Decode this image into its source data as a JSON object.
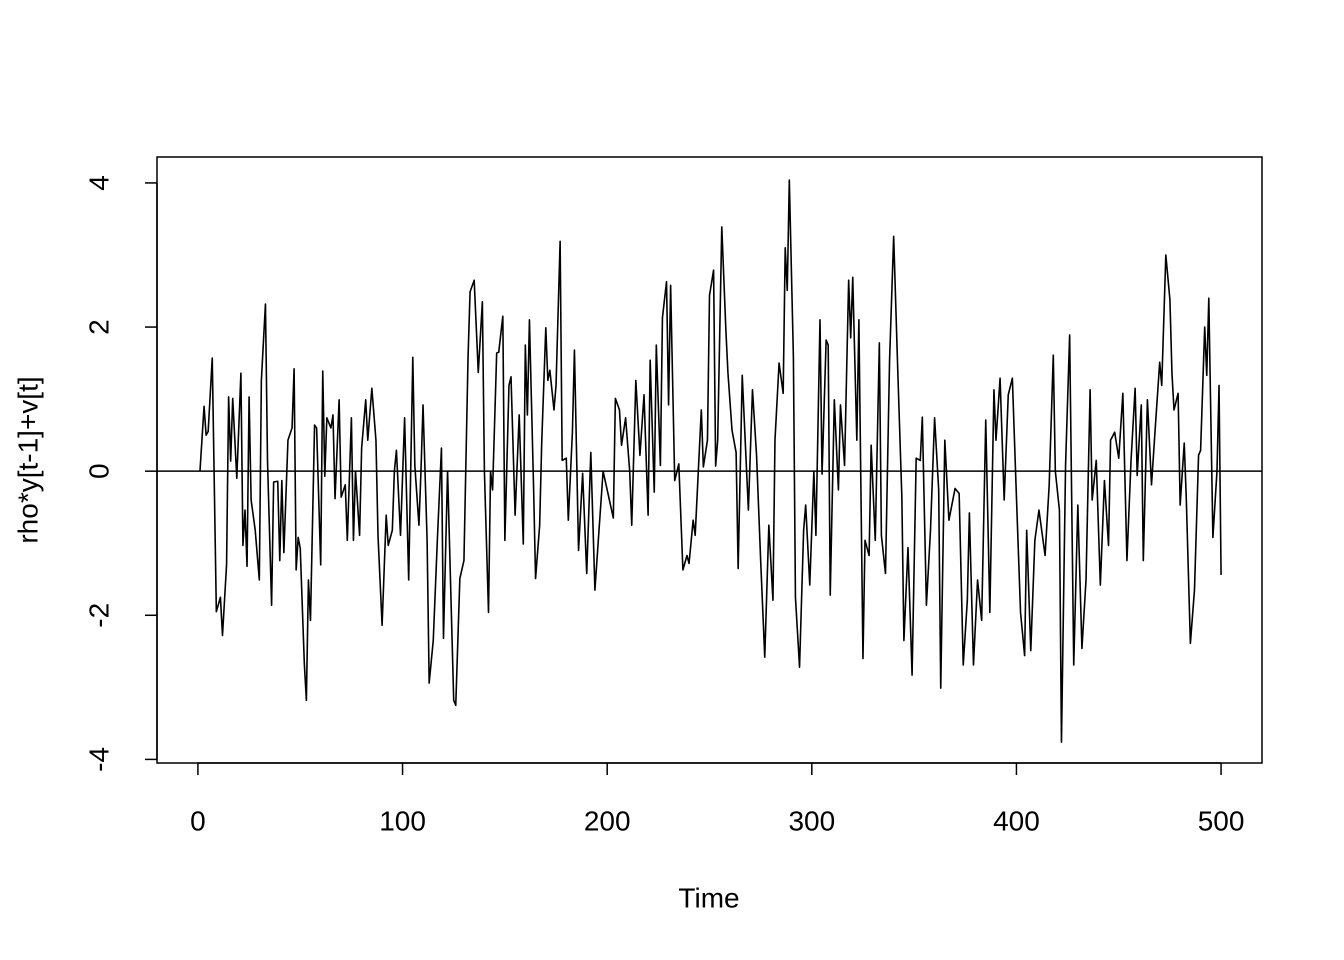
{
  "chart_data": {
    "type": "line",
    "x_label": "Time",
    "y_label": "rho*y[t-1]+v[t]",
    "color": "#000000",
    "hline": 0,
    "xlim": [
      -20,
      520
    ],
    "ylim": [
      -4.05,
      4.36
    ],
    "xticks": [
      0,
      100,
      200,
      300,
      400,
      500
    ],
    "yticks": [
      -4,
      -2,
      0,
      2,
      4
    ],
    "x": [
      1,
      3,
      4,
      5,
      7,
      9,
      11,
      12,
      14,
      15,
      16,
      17,
      19,
      21,
      22,
      23,
      24,
      25,
      26,
      28,
      30,
      31,
      33,
      34,
      36,
      37,
      39,
      40,
      41,
      42,
      44,
      46,
      47,
      48,
      49,
      50,
      52,
      53,
      54,
      55,
      57,
      58,
      60,
      61,
      62,
      63,
      65,
      66,
      67,
      69,
      70,
      72,
      73,
      75,
      76,
      77,
      79,
      80,
      82,
      83,
      85,
      87,
      88,
      90,
      92,
      93,
      95,
      96,
      97,
      99,
      101,
      103,
      105,
      106,
      108,
      109,
      110,
      112,
      113,
      115,
      117,
      119,
      120,
      122,
      125,
      126,
      128,
      130,
      132,
      133,
      135,
      137,
      139,
      140,
      142,
      143,
      144,
      146,
      147,
      149,
      150,
      152,
      153,
      155,
      157,
      159,
      160,
      161,
      162,
      164,
      165,
      167,
      168,
      170,
      171,
      172,
      174,
      175,
      177,
      178,
      180,
      181,
      183,
      184,
      186,
      188,
      190,
      192,
      194,
      196,
      198,
      200,
      203,
      204,
      206,
      207,
      209,
      211,
      212,
      214,
      216,
      218,
      220,
      221,
      223,
      224,
      226,
      227,
      229,
      230,
      231,
      233,
      235,
      237,
      239,
      240,
      242,
      243,
      246,
      247,
      249,
      250,
      252,
      253,
      254,
      256,
      258,
      259,
      261,
      263,
      264,
      266,
      268,
      269,
      271,
      273,
      275,
      277,
      279,
      281,
      282,
      284,
      286,
      287,
      288,
      289,
      291,
      292,
      294,
      296,
      297,
      299,
      301,
      302,
      304,
      305,
      307,
      308,
      309,
      311,
      313,
      314,
      316,
      318,
      319,
      320,
      322,
      323,
      325,
      326,
      328,
      329,
      331,
      333,
      334,
      336,
      338,
      340,
      342,
      344,
      345,
      347,
      349,
      351,
      353,
      354,
      356,
      358,
      360,
      362,
      363,
      365,
      367,
      370,
      372,
      374,
      376,
      377,
      379,
      381,
      383,
      385,
      387,
      389,
      390,
      392,
      394,
      396,
      398,
      400,
      402,
      404,
      405,
      407,
      409,
      411,
      414,
      416,
      418,
      419,
      421,
      422,
      424,
      426,
      428,
      430,
      432,
      434,
      436,
      437,
      439,
      441,
      443,
      445,
      446,
      448,
      450,
      452,
      454,
      456,
      458,
      459,
      461,
      462,
      464,
      466,
      468,
      470,
      471,
      473,
      475,
      476,
      477,
      479,
      480,
      482,
      483,
      485,
      487,
      489,
      490,
      492,
      493,
      494,
      496,
      498,
      499,
      500
    ],
    "values": [
      0.0,
      0.9,
      0.5,
      0.55,
      1.57,
      -1.95,
      -1.75,
      -2.28,
      -1.3,
      1.03,
      0.14,
      1.01,
      -0.1,
      1.36,
      -1.03,
      -0.54,
      -1.32,
      1.03,
      -0.4,
      -0.82,
      -1.51,
      1.26,
      2.32,
      0.15,
      -1.86,
      -0.15,
      -0.14,
      -1.24,
      -0.13,
      -1.13,
      0.43,
      0.6,
      1.42,
      -1.37,
      -0.92,
      -1.07,
      -2.67,
      -3.18,
      -1.51,
      -2.07,
      0.64,
      0.6,
      -1.3,
      1.39,
      -0.07,
      0.74,
      0.6,
      0.78,
      -0.38,
      0.99,
      -0.36,
      -0.19,
      -0.96,
      0.74,
      -0.96,
      0.0,
      -0.89,
      0.32,
      0.99,
      0.43,
      1.15,
      0.43,
      -0.89,
      -2.14,
      -0.61,
      -1.03,
      -0.82,
      0.0,
      0.29,
      -0.89,
      0.74,
      -1.51,
      1.58,
      0.08,
      -0.75,
      0.0,
      0.92,
      -0.96,
      -2.94,
      -2.35,
      -0.96,
      0.32,
      -2.32,
      0.0,
      -3.18,
      -3.25,
      -1.49,
      -1.24,
      1.58,
      2.49,
      2.65,
      1.37,
      2.35,
      0.0,
      -1.96,
      0.0,
      -0.26,
      1.64,
      1.65,
      2.15,
      -0.96,
      1.19,
      1.31,
      -0.61,
      0.78,
      -1.01,
      1.75,
      0.78,
      2.1,
      -0.19,
      -1.49,
      -0.75,
      0.39,
      1.99,
      1.26,
      1.4,
      0.85,
      1.19,
      3.19,
      0.15,
      0.18,
      -0.68,
      0.54,
      1.68,
      -1.1,
      -0.03,
      -1.42,
      0.26,
      -1.65,
      -0.82,
      0.0,
      -0.26,
      -0.65,
      1.01,
      0.85,
      0.36,
      0.74,
      0.0,
      -0.75,
      1.26,
      0.22,
      1.06,
      -0.61,
      1.54,
      -0.29,
      1.75,
      0.08,
      2.13,
      2.63,
      0.92,
      2.58,
      -0.13,
      0.1,
      -1.37,
      -1.17,
      -1.28,
      -0.68,
      -0.89,
      0.85,
      0.06,
      0.43,
      2.44,
      2.79,
      0.07,
      0.43,
      3.39,
      1.96,
      1.37,
      0.57,
      0.26,
      -1.35,
      1.33,
      0.08,
      -0.54,
      1.13,
      0.22,
      -1.24,
      -2.58,
      -0.75,
      -1.79,
      0.43,
      1.5,
      1.08,
      3.1,
      2.51,
      4.04,
      1.58,
      -1.75,
      -2.72,
      -0.82,
      -0.47,
      -1.58,
      0.0,
      -0.89,
      2.1,
      -0.04,
      1.82,
      1.75,
      -1.72,
      0.99,
      -0.26,
      0.92,
      0.08,
      2.65,
      1.85,
      2.69,
      0.43,
      2.1,
      -2.6,
      -0.96,
      -1.17,
      0.36,
      -0.96,
      1.78,
      -0.89,
      -1.42,
      1.54,
      3.26,
      1.4,
      -0.36,
      -2.35,
      -1.06,
      -2.83,
      0.18,
      0.15,
      0.75,
      -1.86,
      -0.82,
      0.74,
      -0.26,
      -3.01,
      0.43,
      -0.68,
      -0.24,
      -0.31,
      -2.69,
      -1.79,
      -0.58,
      -2.69,
      -1.51,
      -2.07,
      0.71,
      -1.96,
      1.13,
      0.43,
      1.29,
      -0.4,
      1.06,
      1.29,
      -0.36,
      -1.96,
      -2.56,
      -0.82,
      -2.49,
      -0.96,
      -0.54,
      -1.17,
      -0.19,
      1.61,
      0.0,
      -0.54,
      -3.76,
      0.08,
      1.89,
      -2.69,
      -0.47,
      -2.46,
      -1.51,
      1.13,
      -0.4,
      0.15,
      -1.58,
      -0.13,
      -1.03,
      0.43,
      0.54,
      0.18,
      1.08,
      -1.24,
      0.15,
      1.15,
      -0.06,
      0.92,
      -1.24,
      0.99,
      -0.19,
      0.67,
      1.51,
      1.19,
      3.0,
      2.38,
      1.36,
      0.85,
      1.08,
      -0.47,
      0.39,
      -0.38,
      -2.39,
      -1.65,
      0.22,
      0.29,
      2.0,
      1.33,
      2.4,
      -0.92,
      0.0,
      1.19,
      -1.44
    ]
  }
}
